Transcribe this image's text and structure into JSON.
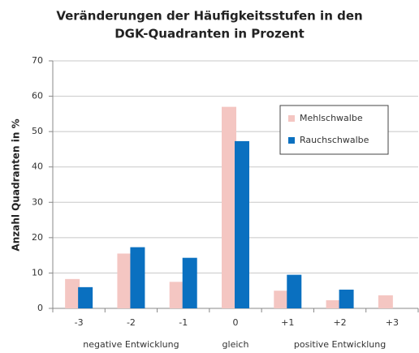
{
  "chart_data": {
    "type": "bar",
    "title": [
      "Veränderungen der Häufigkeitsstufen in den",
      "DGK-Quadranten in Prozent"
    ],
    "y_label": "Anzahl Quadranten in %",
    "categories": [
      "-3",
      "-2",
      "-1",
      "0",
      "+1",
      "+2",
      "+3"
    ],
    "series": [
      {
        "name": "Mehlschwalbe",
        "color": "#f4c6c2",
        "values": [
          8.3,
          15.5,
          7.5,
          57,
          5,
          2.3,
          3.7
        ]
      },
      {
        "name": "Rauchschwalbe",
        "color": "#0a70c0",
        "values": [
          6,
          17.3,
          14.3,
          47.3,
          9.5,
          5.3,
          0
        ]
      }
    ],
    "annotations": [
      "negative Entwicklung",
      "gleich",
      "positive Entwicklung"
    ],
    "ylim": [
      0,
      70
    ],
    "yticks": [
      0,
      10,
      20,
      30,
      40,
      50,
      60,
      70
    ],
    "grid": true,
    "legend": "upper right"
  }
}
